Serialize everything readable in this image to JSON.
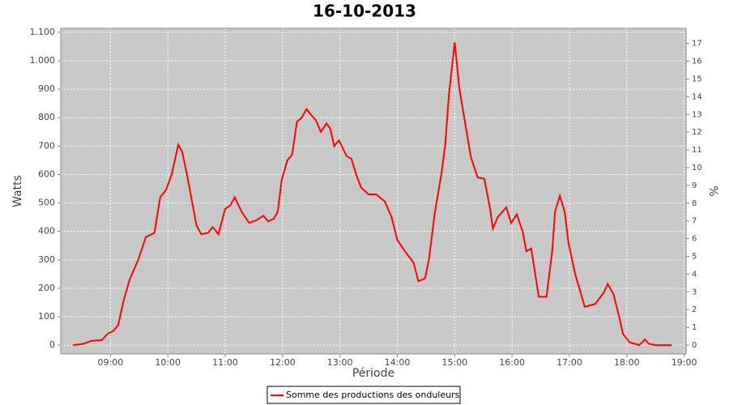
{
  "chart_data": {
    "type": "line",
    "title": "16-10-2013",
    "x_label": "Période",
    "y_label": "Watts",
    "y2_label": "%",
    "x": [
      "08:21",
      "08:32",
      "08:40",
      "08:51",
      "08:57",
      "09:03",
      "09:08",
      "09:14",
      "09:20",
      "09:29",
      "09:37",
      "09:46",
      "09:52",
      "09:58",
      "10:04",
      "10:11",
      "10:15",
      "10:20",
      "10:25",
      "10:30",
      "10:35",
      "10:42",
      "10:47",
      "10:53",
      "11:00",
      "11:05",
      "11:10",
      "11:17",
      "11:25",
      "11:33",
      "11:40",
      "11:45",
      "11:51",
      "11:55",
      "11:59",
      "12:05",
      "12:10",
      "12:15",
      "12:20",
      "12:25",
      "12:31",
      "12:35",
      "12:40",
      "12:46",
      "12:50",
      "12:54",
      "12:59",
      "13:07",
      "13:12",
      "13:17",
      "13:22",
      "13:30",
      "13:38",
      "13:47",
      "13:54",
      "14:00",
      "14:08",
      "14:17",
      "14:22",
      "14:29",
      "14:33",
      "14:39",
      "14:46",
      "14:50",
      "14:54",
      "15:00",
      "15:05",
      "15:11",
      "15:17",
      "15:24",
      "15:31",
      "15:37",
      "15:40",
      "15:45",
      "15:54",
      "15:59",
      "16:05",
      "16:11",
      "16:15",
      "16:20",
      "16:28",
      "16:36",
      "16:42",
      "16:45",
      "16:50",
      "16:55",
      "16:59",
      "17:06",
      "17:13",
      "17:16",
      "17:27",
      "17:36",
      "17:40",
      "17:46",
      "17:52",
      "17:56",
      "18:03",
      "18:13",
      "18:19",
      "18:23",
      "18:30",
      "18:47"
    ],
    "series": [
      {
        "name": "Somme des productions des onduleurs",
        "color": "#ff0000",
        "values": [
          0,
          5,
          15,
          18,
          40,
          50,
          70,
          160,
          230,
          300,
          380,
          395,
          520,
          545,
          600,
          705,
          680,
          600,
          510,
          420,
          390,
          395,
          415,
          390,
          480,
          490,
          520,
          470,
          430,
          440,
          455,
          435,
          445,
          470,
          580,
          650,
          670,
          785,
          800,
          830,
          805,
          790,
          750,
          780,
          760,
          700,
          720,
          665,
          655,
          600,
          555,
          530,
          530,
          505,
          450,
          370,
          330,
          290,
          225,
          235,
          300,
          460,
          600,
          700,
          880,
          1065,
          900,
          780,
          660,
          590,
          585,
          480,
          410,
          450,
          485,
          430,
          460,
          400,
          330,
          340,
          170,
          170,
          330,
          470,
          525,
          470,
          360,
          250,
          170,
          135,
          145,
          185,
          215,
          180,
          100,
          40,
          10,
          0,
          20,
          5,
          0,
          0
        ]
      }
    ],
    "xlim": [
      "08:08",
      "19:02"
    ],
    "xticks": [
      "09:00",
      "10:00",
      "11:00",
      "12:00",
      "13:00",
      "14:00",
      "15:00",
      "16:00",
      "17:00",
      "18:00",
      "19:00"
    ],
    "ylim": [
      -31,
      1114
    ],
    "yticks": [
      0,
      100,
      200,
      300,
      400,
      500,
      600,
      700,
      800,
      900,
      {
        "value": 1000,
        "label": "1.000"
      },
      {
        "value": 1100,
        "label": "1.100"
      }
    ],
    "y2lim": [
      -0.5,
      17.85
    ],
    "y2ticks": [
      0,
      1,
      2,
      3,
      4,
      5,
      6,
      7,
      8,
      9,
      10,
      11,
      12,
      13,
      14,
      15,
      16,
      17
    ],
    "grid": true,
    "legend": "bottom"
  }
}
